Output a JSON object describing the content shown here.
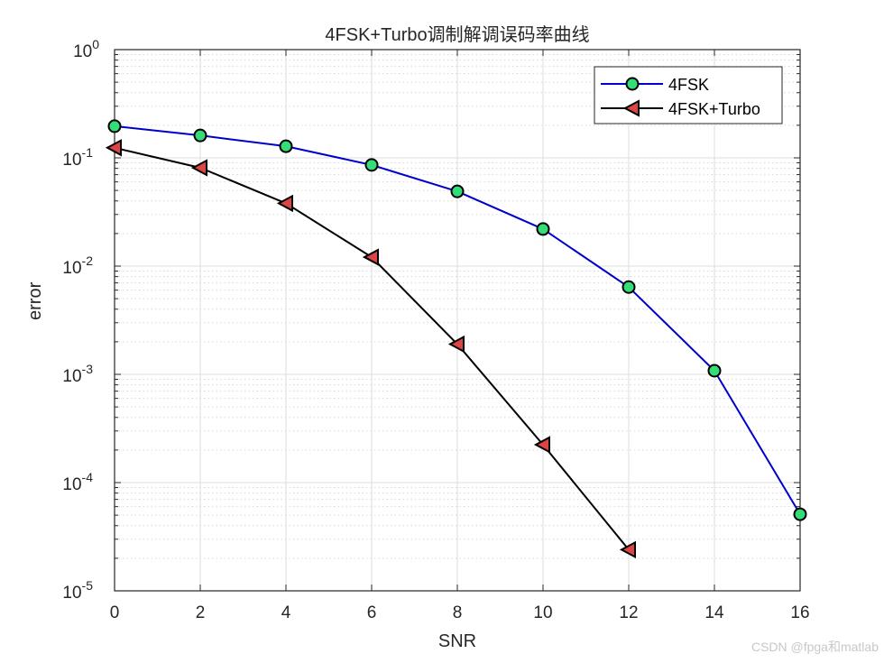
{
  "chart_data": {
    "type": "line",
    "title": "4FSK+Turbo调制解调误码率曲线",
    "xlabel": "SNR",
    "ylabel": "error",
    "xscale": "linear",
    "yscale": "log",
    "xlim": [
      0,
      16
    ],
    "ylim": [
      1e-05,
      1
    ],
    "xticks": [
      0,
      2,
      4,
      6,
      8,
      10,
      12,
      14,
      16
    ],
    "yticks": [
      "10^0",
      "10^-1",
      "10^-2",
      "10^-3",
      "10^-4",
      "10^-5"
    ],
    "grid": true,
    "minor_grid": true,
    "legend_position": "northeast",
    "series": [
      {
        "name": "4FSK",
        "color": "#0000cc",
        "marker": "circle",
        "marker_face": "#33dd77",
        "x": [
          0,
          2,
          4,
          6,
          8,
          10,
          12,
          14,
          16
        ],
        "y": [
          0.196,
          0.161,
          0.128,
          0.086,
          0.049,
          0.022,
          0.0064,
          0.00108,
          5.1e-05
        ]
      },
      {
        "name": "4FSK+Turbo",
        "color": "#000000",
        "marker": "triangle-left",
        "marker_face": "#dd4444",
        "x": [
          0,
          2,
          4,
          6,
          8,
          10,
          12
        ],
        "y": [
          0.124,
          0.081,
          0.038,
          0.0121,
          0.0019,
          0.000224,
          2.4e-05
        ]
      }
    ]
  },
  "watermark": "CSDN @fpga和matlab"
}
